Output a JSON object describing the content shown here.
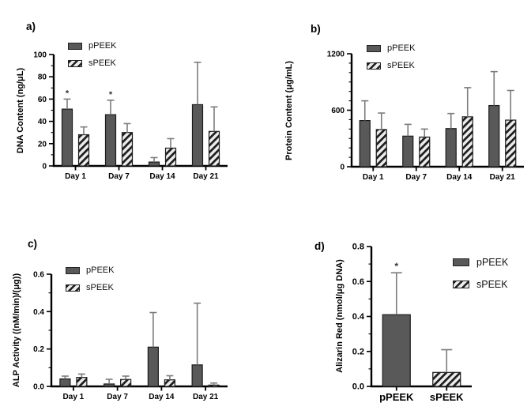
{
  "figure": {
    "background": "#ffffff",
    "colors": {
      "solid_bar": "#595959",
      "hatch_bar_bg": "#ececec",
      "hatch_bar_stripe": "#1c1c1c",
      "bar_outline": "#1c1c1c",
      "error_bar": "#7c7c7c",
      "axis": "#000000",
      "sig_star": "#333333"
    },
    "legend_series": [
      "pPEEK",
      "sPEEK"
    ]
  },
  "chart_data": [
    {
      "id": "a",
      "panel_label": "a)",
      "type": "bar",
      "title": "",
      "xlabel": "",
      "ylabel": "DNA Content (ng/μL)",
      "ylim": [
        0,
        100
      ],
      "ytick_values": [
        0,
        20,
        40,
        60,
        80,
        100
      ],
      "ytick_labels": [
        "0",
        "20",
        "40",
        "60",
        "80",
        "100"
      ],
      "minor_tick_step": 10,
      "grid": false,
      "legend_position": "top-left-inside",
      "categories": [
        "Day 1",
        "Day 7",
        "Day 14",
        "Day 21"
      ],
      "series": [
        {
          "name": "pPEEK",
          "pattern": "solid",
          "values": [
            51,
            46,
            3.5,
            55
          ],
          "errors_plus": [
            9,
            13,
            4,
            38
          ],
          "significance": [
            "*",
            "*",
            "",
            ""
          ]
        },
        {
          "name": "sPEEK",
          "pattern": "hatch",
          "values": [
            28,
            30,
            16,
            31
          ],
          "errors_plus": [
            7,
            8,
            8.5,
            22
          ],
          "significance": [
            "",
            "",
            "",
            ""
          ]
        }
      ]
    },
    {
      "id": "b",
      "panel_label": "b)",
      "type": "bar",
      "title": "",
      "xlabel": "",
      "ylabel": "Protein Content (μg/mL)",
      "ylim": [
        0,
        1200
      ],
      "ytick_values": [
        0,
        600,
        1200
      ],
      "ytick_labels": [
        "0",
        "600",
        "1200"
      ],
      "minor_tick_step": 100,
      "grid": false,
      "legend_position": "top-left-inside",
      "categories": [
        "Day 1",
        "Day 7",
        "Day 14",
        "Day 21"
      ],
      "series": [
        {
          "name": "pPEEK",
          "pattern": "solid",
          "values": [
            490,
            325,
            405,
            650
          ],
          "errors_plus": [
            210,
            125,
            160,
            360
          ],
          "significance": [
            "",
            "",
            "",
            ""
          ]
        },
        {
          "name": "sPEEK",
          "pattern": "hatch",
          "values": [
            395,
            315,
            530,
            495
          ],
          "errors_plus": [
            175,
            85,
            310,
            315
          ],
          "significance": [
            "",
            "",
            "",
            ""
          ]
        }
      ]
    },
    {
      "id": "c",
      "panel_label": "c)",
      "type": "bar",
      "title": "",
      "xlabel": "",
      "ylabel": "ALP Activity ((nM/min)/(μg))",
      "ylim": [
        0,
        0.6
      ],
      "ytick_values": [
        0,
        0.2,
        0.4,
        0.6
      ],
      "ytick_labels": [
        "0.0",
        "0.2",
        "0.4",
        "0.6"
      ],
      "minor_tick_step": 0.1,
      "grid": false,
      "legend_position": "top-left-inside",
      "categories": [
        "Day 1",
        "Day 7",
        "Day 14",
        "Day 21"
      ],
      "series": [
        {
          "name": "pPEEK",
          "pattern": "solid",
          "values": [
            0.04,
            0.013,
            0.21,
            0.115
          ],
          "errors_plus": [
            0.015,
            0.025,
            0.185,
            0.33
          ],
          "significance": [
            "",
            "",
            "",
            ""
          ]
        },
        {
          "name": "sPEEK",
          "pattern": "hatch",
          "values": [
            0.048,
            0.037,
            0.035,
            0.007
          ],
          "errors_plus": [
            0.018,
            0.018,
            0.022,
            0.011
          ],
          "significance": [
            "",
            "",
            "",
            ""
          ]
        }
      ]
    },
    {
      "id": "d",
      "panel_label": "d)",
      "type": "bar",
      "title": "",
      "xlabel": "",
      "ylabel": "Alizarin Red (nmol/μg DNA)",
      "ylim": [
        0,
        0.8
      ],
      "ytick_values": [
        0,
        0.2,
        0.4,
        0.6,
        0.8
      ],
      "ytick_labels": [
        "0.0",
        "0.2",
        "0.4",
        "0.6",
        "0.8"
      ],
      "minor_tick_step": 0.1,
      "grid": false,
      "legend_position": "right-outside",
      "categories": [
        "pPEEK",
        "sPEEK"
      ],
      "series": [
        {
          "name": "pPEEK",
          "pattern": "solid",
          "values": [
            0.41,
            null
          ],
          "errors_plus": [
            0.24,
            null
          ],
          "significance": [
            "*",
            ""
          ]
        },
        {
          "name": "sPEEK",
          "pattern": "hatch",
          "values": [
            null,
            0.08
          ],
          "errors_plus": [
            null,
            0.13
          ],
          "significance": [
            "",
            ""
          ]
        }
      ]
    }
  ]
}
